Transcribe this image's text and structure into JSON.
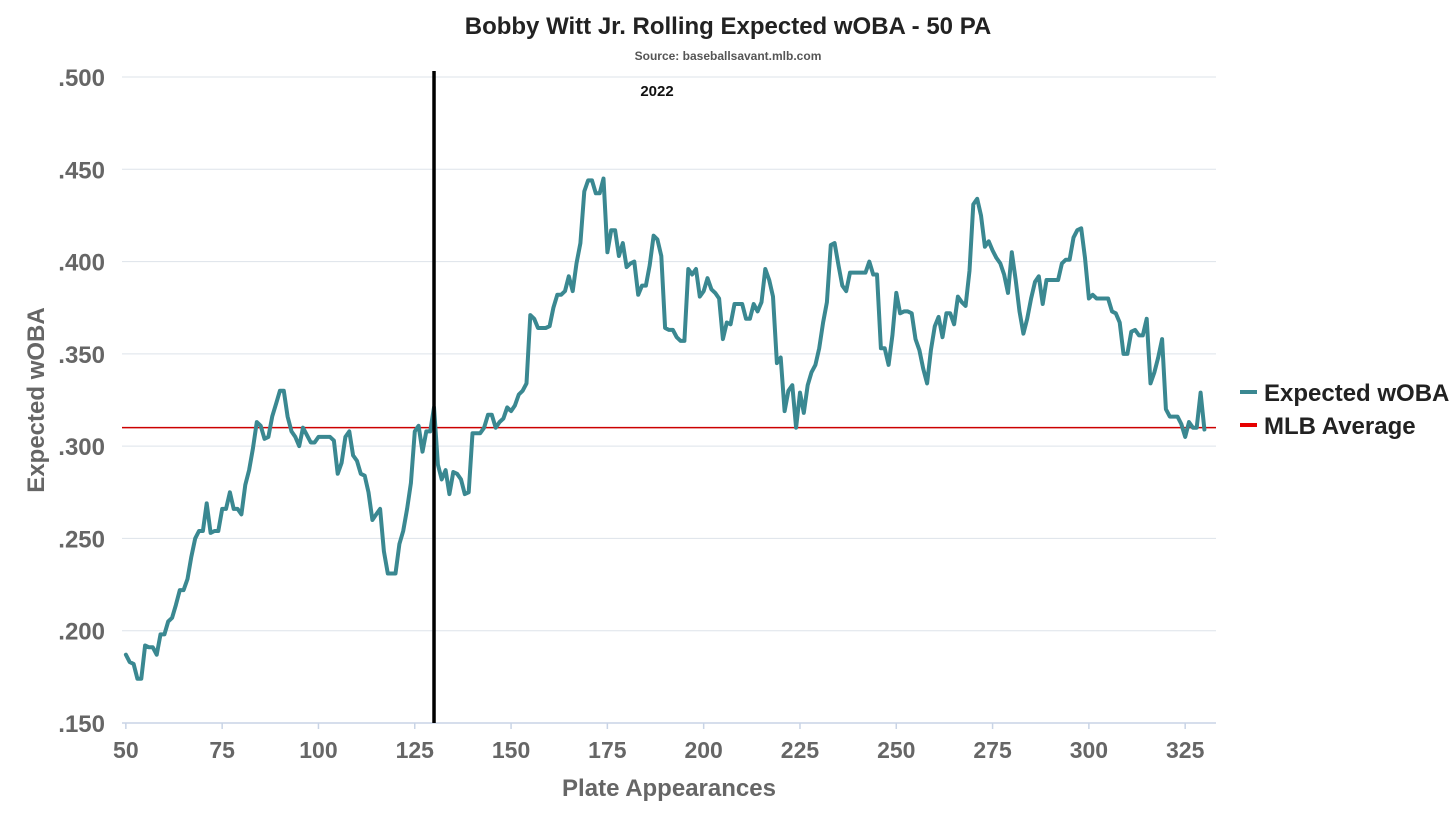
{
  "chart_data": {
    "type": "line",
    "title": "Bobby Witt Jr. Rolling Expected wOBA - 50 PA",
    "subtitle": "Source: baseballsavant.mlb.com",
    "annotation": {
      "label": "2022",
      "x": 130
    },
    "xlabel": "Plate Appearances",
    "ylabel": "Expected wOBA",
    "xlim": [
      49,
      333
    ],
    "ylim": [
      0.15,
      0.5
    ],
    "x_ticks": [
      50,
      75,
      100,
      125,
      150,
      175,
      200,
      225,
      250,
      275,
      300,
      325
    ],
    "x_tick_labels": [
      "50",
      "75",
      "100",
      "125",
      "150",
      "175",
      "200",
      "225",
      "250",
      "275",
      "300",
      "325"
    ],
    "y_ticks": [
      0.15,
      0.2,
      0.25,
      0.3,
      0.35,
      0.4,
      0.45,
      0.5
    ],
    "y_tick_labels": [
      ".150",
      ".200",
      ".250",
      ".300",
      ".350",
      ".400",
      ".450",
      ".500"
    ],
    "grid": "horizontal",
    "legend_position": "right",
    "reference_line": {
      "name": "MLB Average",
      "value": 0.31,
      "color": "#cc0000"
    },
    "series": [
      {
        "name": "Expected wOBA",
        "color": "#3a8891",
        "x": [
          50,
          51,
          52,
          53,
          54,
          55,
          56,
          57,
          58,
          59,
          60,
          61,
          62,
          63,
          64,
          65,
          66,
          67,
          68,
          69,
          70,
          71,
          72,
          73,
          74,
          75,
          76,
          77,
          78,
          79,
          80,
          81,
          82,
          83,
          84,
          85,
          86,
          87,
          88,
          89,
          90,
          91,
          92,
          93,
          94,
          95,
          96,
          97,
          98,
          99,
          100,
          101,
          102,
          103,
          104,
          105,
          106,
          107,
          108,
          109,
          110,
          111,
          112,
          113,
          114,
          115,
          116,
          117,
          118,
          119,
          120,
          121,
          122,
          123,
          124,
          125,
          126,
          127,
          128,
          129,
          130,
          131,
          132,
          133,
          134,
          135,
          136,
          137,
          138,
          139,
          140,
          141,
          142,
          143,
          144,
          145,
          146,
          147,
          148,
          149,
          150,
          151,
          152,
          153,
          154,
          155,
          156,
          157,
          158,
          159,
          160,
          161,
          162,
          163,
          164,
          165,
          166,
          167,
          168,
          169,
          170,
          171,
          172,
          173,
          174,
          175,
          176,
          177,
          178,
          179,
          180,
          181,
          182,
          183,
          184,
          185,
          186,
          187,
          188,
          189,
          190,
          191,
          192,
          193,
          194,
          195,
          196,
          197,
          198,
          199,
          200,
          201,
          202,
          203,
          204,
          205,
          206,
          207,
          208,
          209,
          210,
          211,
          212,
          213,
          214,
          215,
          216,
          217,
          218,
          219,
          220,
          221,
          222,
          223,
          224,
          225,
          226,
          227,
          228,
          229,
          230,
          231,
          232,
          233,
          234,
          235,
          236,
          237,
          238,
          239,
          240,
          241,
          242,
          243,
          244,
          245,
          246,
          247,
          248,
          249,
          250,
          251,
          252,
          253,
          254,
          255,
          256,
          257,
          258,
          259,
          260,
          261,
          262,
          263,
          264,
          265,
          266,
          267,
          268,
          269,
          270,
          271,
          272,
          273,
          274,
          275,
          276,
          277,
          278,
          279,
          280,
          281,
          282,
          283,
          284,
          285,
          286,
          287,
          288,
          289,
          290,
          291,
          292,
          293,
          294,
          295,
          296,
          297,
          298,
          299,
          300,
          301,
          302,
          303,
          304,
          305,
          306,
          307,
          308,
          309,
          310,
          311,
          312,
          313,
          314,
          315,
          316,
          317,
          318,
          319,
          320,
          321,
          322,
          323,
          324,
          325,
          326,
          327,
          328,
          329,
          330
        ],
        "y": [
          0.187,
          0.183,
          0.182,
          0.174,
          0.174,
          0.192,
          0.191,
          0.191,
          0.187,
          0.198,
          0.198,
          0.205,
          0.207,
          0.214,
          0.222,
          0.222,
          0.228,
          0.24,
          0.25,
          0.254,
          0.254,
          0.269,
          0.253,
          0.254,
          0.254,
          0.266,
          0.266,
          0.275,
          0.266,
          0.266,
          0.263,
          0.279,
          0.287,
          0.299,
          0.313,
          0.311,
          0.304,
          0.305,
          0.316,
          0.323,
          0.33,
          0.33,
          0.316,
          0.308,
          0.305,
          0.3,
          0.31,
          0.306,
          0.302,
          0.302,
          0.305,
          0.305,
          0.305,
          0.305,
          0.303,
          0.285,
          0.291,
          0.305,
          0.308,
          0.295,
          0.292,
          0.285,
          0.284,
          0.275,
          0.26,
          0.263,
          0.266,
          0.243,
          0.231,
          0.231,
          0.231,
          0.247,
          0.254,
          0.266,
          0.28,
          0.308,
          0.311,
          0.297,
          0.308,
          0.308,
          0.321,
          0.29,
          0.282,
          0.287,
          0.274,
          0.286,
          0.285,
          0.282,
          0.274,
          0.275,
          0.307,
          0.307,
          0.307,
          0.31,
          0.317,
          0.317,
          0.31,
          0.313,
          0.315,
          0.321,
          0.319,
          0.322,
          0.328,
          0.33,
          0.334,
          0.371,
          0.369,
          0.364,
          0.364,
          0.364,
          0.365,
          0.375,
          0.382,
          0.382,
          0.384,
          0.392,
          0.384,
          0.399,
          0.41,
          0.438,
          0.444,
          0.444,
          0.437,
          0.437,
          0.445,
          0.405,
          0.417,
          0.417,
          0.403,
          0.41,
          0.397,
          0.399,
          0.4,
          0.382,
          0.387,
          0.387,
          0.398,
          0.414,
          0.412,
          0.403,
          0.364,
          0.363,
          0.363,
          0.359,
          0.357,
          0.357,
          0.396,
          0.393,
          0.396,
          0.381,
          0.384,
          0.391,
          0.385,
          0.383,
          0.38,
          0.358,
          0.367,
          0.366,
          0.377,
          0.377,
          0.377,
          0.369,
          0.369,
          0.377,
          0.373,
          0.378,
          0.396,
          0.39,
          0.381,
          0.345,
          0.348,
          0.319,
          0.33,
          0.333,
          0.31,
          0.329,
          0.318,
          0.333,
          0.34,
          0.344,
          0.353,
          0.367,
          0.378,
          0.409,
          0.41,
          0.398,
          0.387,
          0.384,
          0.394,
          0.394,
          0.394,
          0.394,
          0.394,
          0.4,
          0.393,
          0.393,
          0.353,
          0.353,
          0.344,
          0.36,
          0.383,
          0.372,
          0.373,
          0.373,
          0.372,
          0.358,
          0.352,
          0.342,
          0.334,
          0.352,
          0.365,
          0.37,
          0.359,
          0.372,
          0.372,
          0.366,
          0.381,
          0.378,
          0.376,
          0.395,
          0.431,
          0.434,
          0.425,
          0.408,
          0.411,
          0.406,
          0.402,
          0.399,
          0.393,
          0.383,
          0.405,
          0.39,
          0.373,
          0.361,
          0.369,
          0.38,
          0.389,
          0.392,
          0.377,
          0.39,
          0.39,
          0.39,
          0.39,
          0.399,
          0.401,
          0.401,
          0.413,
          0.417,
          0.418,
          0.402,
          0.38,
          0.382,
          0.38,
          0.38,
          0.38,
          0.38,
          0.373,
          0.372,
          0.367,
          0.35,
          0.35,
          0.362,
          0.363,
          0.36,
          0.36,
          0.369,
          0.334,
          0.34,
          0.348,
          0.358,
          0.32,
          0.316,
          0.316,
          0.316,
          0.312,
          0.305,
          0.313,
          0.31,
          0.31,
          0.329,
          0.309
        ]
      }
    ]
  }
}
